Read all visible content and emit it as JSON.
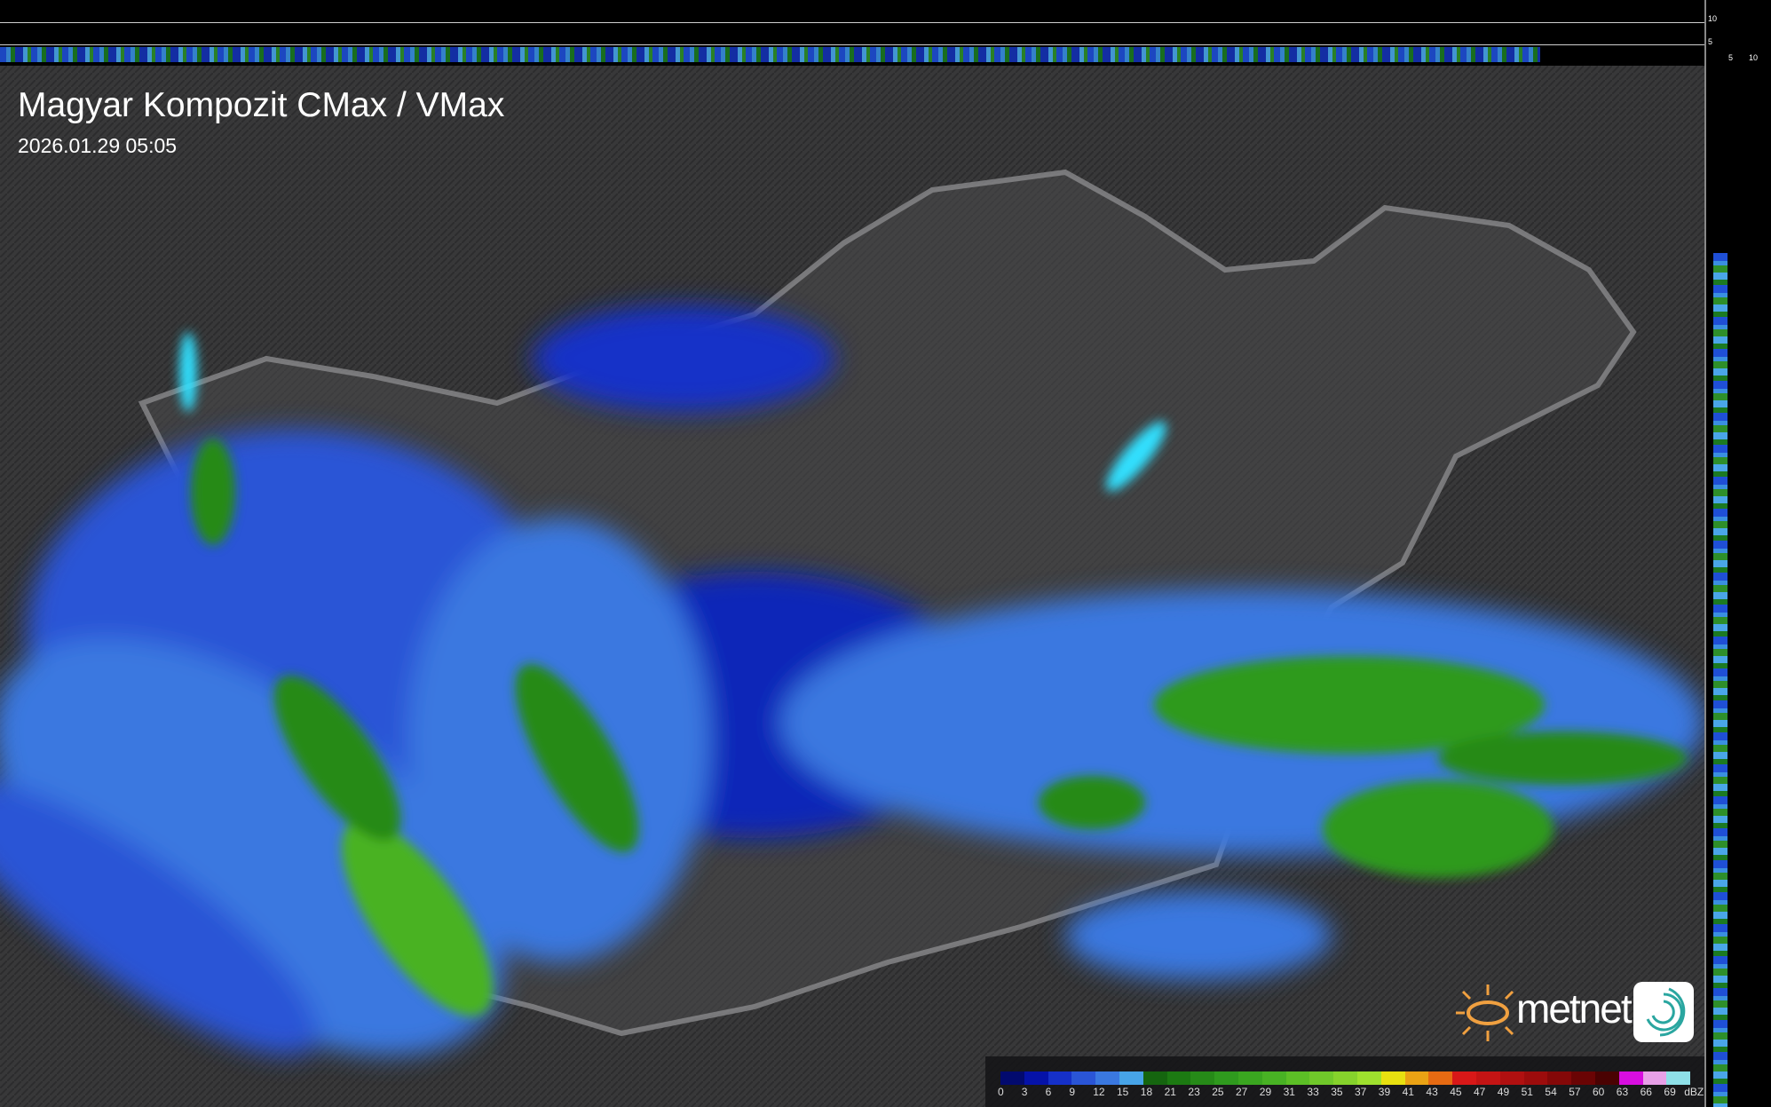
{
  "title": "Magyar Kompozit CMax / VMax",
  "datetime": "2026.01.29 05:05",
  "profile_ticks": {
    "top_right": [
      "10",
      "5"
    ],
    "side_bottom": [
      "5",
      "10"
    ]
  },
  "logo": {
    "text": "metnet"
  },
  "legend": {
    "unit": "dBZ",
    "labels": [
      "0",
      "3",
      "6",
      "9",
      "12",
      "15",
      "18",
      "21",
      "23",
      "25",
      "27",
      "29",
      "31",
      "33",
      "35",
      "37",
      "39",
      "41",
      "43",
      "45",
      "47",
      "49",
      "51",
      "54",
      "57",
      "60",
      "63",
      "66",
      "69"
    ],
    "colors": [
      "#020a6e",
      "#0512a8",
      "#1530c8",
      "#2a55d6",
      "#3a78e0",
      "#47a4e8",
      "#15650f",
      "#1c7a12",
      "#268a18",
      "#2f9a1e",
      "#3aa620",
      "#48b224",
      "#5cbf26",
      "#70c82a",
      "#86d22c",
      "#9ee02e",
      "#e8e010",
      "#eaa214",
      "#e66a12",
      "#d81818",
      "#c41414",
      "#b01010",
      "#9c0c0c",
      "#840808",
      "#6a0404",
      "#4a0202",
      "#d80ee0",
      "#e8a0e8",
      "#8ee0e8"
    ]
  }
}
